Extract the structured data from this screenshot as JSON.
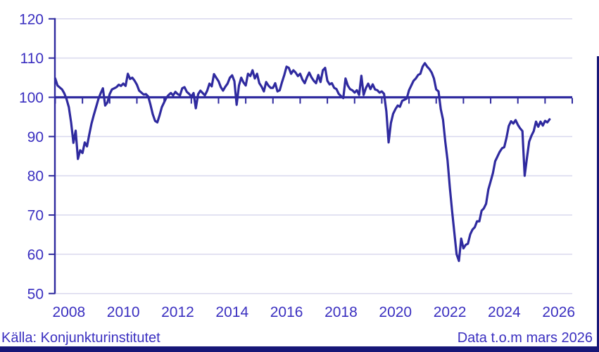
{
  "chart_data": {
    "type": "line",
    "title": "",
    "ylabel": "",
    "xlabel": "",
    "ylim": [
      50,
      120
    ],
    "baseline": 100,
    "grid": "horizontal",
    "legend": "none",
    "y_ticks": [
      "120",
      "110",
      "100",
      "90",
      "80",
      "70",
      "60",
      "50"
    ],
    "y_tick_values": [
      120,
      110,
      100,
      90,
      80,
      70,
      60,
      50
    ],
    "x_tick_labels": [
      "2008",
      "2010",
      "2012",
      "2014",
      "2016",
      "2018",
      "2020",
      "2022",
      "2024",
      "2026"
    ],
    "x_tick_label_years": [
      2008,
      2010,
      2012,
      2014,
      2016,
      2018,
      2020,
      2022,
      2024,
      2026
    ],
    "series_start": {
      "year": 2008,
      "month": 1
    },
    "series_end": {
      "year": 2026,
      "month": 3
    },
    "frequency": "monthly",
    "values": [
      104.8,
      103.0,
      102.5,
      102.0,
      101.0,
      99.5,
      97.5,
      93.5,
      88.4,
      91.5,
      84.3,
      86.5,
      85.8,
      88.5,
      87.5,
      90.5,
      93.3,
      95.5,
      97.5,
      99.5,
      101.0,
      102.3,
      97.9,
      98.7,
      100.8,
      102.0,
      102.3,
      102.6,
      103.2,
      102.9,
      103.5,
      102.9,
      106.0,
      104.7,
      105.0,
      104.2,
      103.2,
      101.7,
      101.2,
      100.7,
      100.8,
      100.2,
      98.1,
      95.7,
      94.0,
      93.6,
      95.4,
      97.5,
      98.7,
      99.9,
      100.6,
      101.1,
      100.5,
      101.4,
      100.8,
      100.5,
      102.3,
      102.6,
      101.4,
      100.9,
      100.2,
      101.1,
      97.2,
      100.8,
      101.7,
      101.1,
      100.5,
      101.7,
      103.5,
      102.8,
      105.9,
      105.0,
      104.1,
      102.6,
      101.7,
      102.7,
      103.5,
      105.0,
      105.6,
      104.1,
      98.1,
      103.0,
      105.0,
      103.8,
      103.0,
      106.0,
      105.4,
      106.9,
      104.8,
      106.0,
      103.6,
      102.7,
      101.5,
      103.9,
      103.0,
      102.4,
      102.4,
      103.6,
      101.5,
      101.8,
      103.9,
      105.7,
      107.8,
      107.5,
      106.0,
      106.9,
      106.3,
      105.4,
      106.0,
      104.5,
      103.6,
      105.1,
      106.3,
      105.1,
      104.2,
      103.6,
      105.7,
      103.9,
      106.9,
      107.5,
      104.2,
      103.3,
      103.6,
      102.4,
      102.1,
      100.9,
      100.3,
      99.8,
      104.8,
      103.0,
      102.1,
      101.8,
      101.2,
      101.8,
      100.6,
      105.5,
      100.6,
      102.4,
      103.5,
      102.1,
      103.3,
      102.0,
      101.8,
      101.2,
      101.5,
      100.9,
      96.4,
      88.5,
      93.4,
      95.8,
      97.0,
      97.9,
      97.6,
      99.1,
      99.4,
      99.7,
      101.8,
      103.0,
      104.2,
      104.8,
      105.7,
      106.0,
      107.8,
      108.7,
      107.8,
      107.2,
      106.3,
      104.8,
      102.0,
      101.5,
      97.0,
      94.3,
      88.7,
      84.0,
      77.0,
      71.0,
      65.5,
      60.0,
      58.3,
      64.0,
      61.5,
      62.4,
      62.7,
      65.1,
      66.3,
      66.9,
      68.4,
      68.4,
      71.1,
      71.7,
      72.9,
      76.5,
      78.6,
      80.7,
      83.7,
      84.9,
      86.1,
      87.0,
      87.3,
      89.7,
      92.7,
      93.9,
      93.3,
      94.2,
      93.0,
      92.1,
      91.4,
      80.0,
      84.5,
      88.7,
      90.2,
      91.4,
      93.8,
      92.5,
      93.8,
      92.8,
      94.0,
      93.6,
      94.4
    ]
  },
  "footer": {
    "source": "Källa: Konjunkturinstitutet",
    "note": "Data t.o.m mars 2026"
  },
  "colors": {
    "line": "#2f2a9f",
    "axis": "#2f2a9f",
    "labels": "#3a2fc0",
    "grid": "#d9d8ee",
    "bar": "#161677"
  }
}
